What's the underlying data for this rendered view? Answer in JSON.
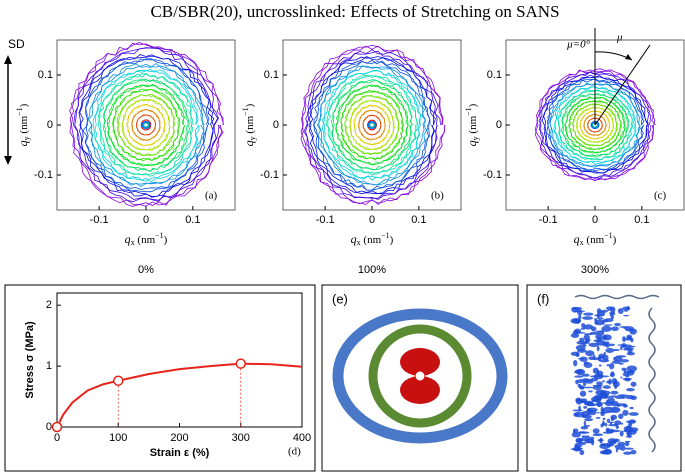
{
  "title": "CB/SBR(20), uncrosslinked: Effects of Stretching on SANS",
  "direction_label": "SD",
  "chart_data": [
    {
      "type": "contour",
      "panel_label": "(a)",
      "caption": "0%",
      "xlabel": {
        "symbol": "q",
        "subscript": "x",
        "unit": " (nm",
        "exponent": "−1",
        "close": ")"
      },
      "ylabel": {
        "symbol": "q",
        "subscript": "y",
        "unit": " (nm",
        "exponent": "−1",
        "close": ")"
      },
      "xlim": [
        -0.19,
        0.19
      ],
      "ylim": [
        -0.17,
        0.17
      ],
      "xticks": [
        -0.1,
        0,
        0.1
      ],
      "yticks": [
        -0.1,
        0,
        0.1
      ]
    },
    {
      "type": "contour",
      "panel_label": "(b)",
      "caption": "100%",
      "xlabel": {
        "symbol": "q",
        "subscript": "x",
        "unit": " (nm",
        "exponent": "−1",
        "close": ")"
      },
      "ylabel": {
        "symbol": "q",
        "subscript": "y",
        "unit": " (nm",
        "exponent": "−1",
        "close": ")"
      },
      "xlim": [
        -0.19,
        0.19
      ],
      "ylim": [
        -0.17,
        0.17
      ],
      "xticks": [
        -0.1,
        0,
        0.1
      ],
      "yticks": [
        -0.1,
        0,
        0.1
      ]
    },
    {
      "type": "contour",
      "panel_label": "(c)",
      "caption": "300%",
      "xlabel": {
        "symbol": "q",
        "subscript": "x",
        "unit": " (nm",
        "exponent": "−1",
        "close": ")"
      },
      "ylabel": {
        "symbol": "q",
        "subscript": "y",
        "unit": " (nm",
        "exponent": "−1",
        "close": ")"
      },
      "xlim": [
        -0.19,
        0.19
      ],
      "ylim": [
        -0.17,
        0.17
      ],
      "xticks": [
        -0.1,
        0,
        0.1
      ],
      "yticks": [
        -0.1,
        0,
        0.1
      ],
      "annotations": [
        "μ=0°",
        "μ"
      ]
    },
    {
      "type": "line",
      "panel_label": "(d)",
      "xlabel": "Strain  ε (%)",
      "ylabel": "Stress  σ (MPa)",
      "xlim": [
        0,
        400
      ],
      "ylim": [
        0,
        2.2
      ],
      "xticks": [
        0,
        100,
        200,
        300,
        400
      ],
      "yticks": [
        0,
        1,
        2
      ],
      "x": [
        0,
        10,
        25,
        50,
        75,
        100,
        150,
        200,
        250,
        300,
        350,
        400
      ],
      "series": [
        {
          "color": "#e8231b",
          "values": [
            0,
            0.2,
            0.4,
            0.6,
            0.7,
            0.76,
            0.87,
            0.95,
            1.0,
            1.04,
            1.03,
            0.99
          ]
        }
      ],
      "points": {
        "x": [
          0,
          100,
          300
        ],
        "values": [
          0,
          0.76,
          1.04
        ]
      }
    }
  ],
  "panels": {
    "e": "(e)",
    "f": "(f)"
  }
}
